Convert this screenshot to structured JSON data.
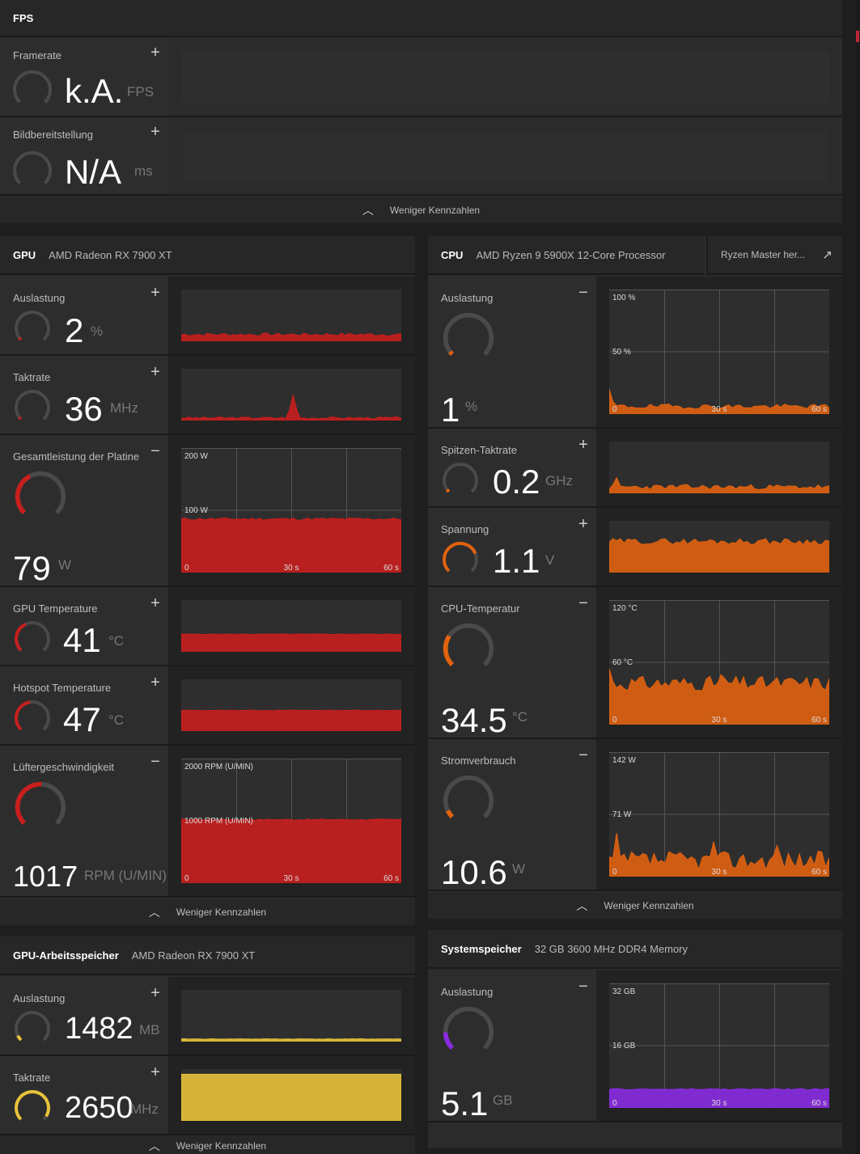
{
  "fps": {
    "title": "FPS",
    "framerate": {
      "label": "Framerate",
      "value": "k.A.",
      "unit": "FPS",
      "toggle": "+"
    },
    "frametime": {
      "label": "Bildbereitstellung",
      "value": "N/A",
      "unit": "ms",
      "toggle": "+"
    },
    "less": "Weniger Kennzahlen"
  },
  "gpu": {
    "title": "GPU",
    "subtitle": "AMD Radeon RX 7900 XT",
    "color": "#c81e1e",
    "less": "Weniger Kennzahlen",
    "metrics": [
      {
        "label": "Auslastung",
        "value": "2",
        "unit": "%",
        "toggle": "+",
        "level": 0.02
      },
      {
        "label": "Taktrate",
        "value": "36",
        "unit": "MHz",
        "toggle": "+",
        "level": 0.01
      },
      {
        "label": "Gesamtleistung der Platine",
        "value": "79",
        "unit": "W",
        "toggle": "−",
        "level": 0.4,
        "chart": {
          "ymax": "200 W",
          "ymid": "100 W",
          "x0": "0",
          "x30": "30 s",
          "x60": "60 s"
        }
      },
      {
        "label": "GPU Temperature",
        "value": "41",
        "unit": "°C",
        "toggle": "+",
        "level": 0.41
      },
      {
        "label": "Hotspot Temperature",
        "value": "47",
        "unit": "°C",
        "toggle": "+",
        "level": 0.47
      },
      {
        "label": "Lüftergeschwindigkeit",
        "value": "1017",
        "unit": "RPM (U/MIN)",
        "toggle": "−",
        "level": 0.51,
        "chart": {
          "ymax": "2000 RPM (U/MIN)",
          "ymid": "1000 RPM (U/MIN)",
          "x0": "0",
          "x30": "30 s",
          "x60": "60 s"
        }
      }
    ]
  },
  "cpu": {
    "title": "CPU",
    "subtitle": "AMD Ryzen 9 5900X 12-Core Processor",
    "link": "Ryzen Master her...",
    "color": "#e0620f",
    "less": "Weniger Kennzahlen",
    "metrics": [
      {
        "label": "Auslastung",
        "value": "1",
        "unit": "%",
        "toggle": "−",
        "level": 0.01,
        "chart": {
          "ymax": "100 %",
          "ymid": "50 %",
          "x0": "0",
          "x30": "30 s",
          "x60": "60 s"
        }
      },
      {
        "label": "Spitzen-Taktrate",
        "value": "0.2",
        "unit": "GHz",
        "toggle": "+",
        "level": 0.04
      },
      {
        "label": "Spannung",
        "value": "1.1",
        "unit": "V",
        "toggle": "+",
        "level": 0.75
      },
      {
        "label": "CPU-Temperatur",
        "value": "34.5",
        "unit": "°C",
        "toggle": "−",
        "level": 0.29,
        "chart": {
          "ymax": "120 °C",
          "ymid": "60 °C",
          "x0": "0",
          "x30": "30 s",
          "x60": "60 s"
        }
      },
      {
        "label": "Stromverbrauch",
        "value": "10.6",
        "unit": "W",
        "toggle": "−",
        "level": 0.07,
        "chart": {
          "ymax": "142 W",
          "ymid": "71 W",
          "x0": "0",
          "x30": "30 s",
          "x60": "60 s"
        }
      }
    ]
  },
  "vram": {
    "title": "GPU-Arbeitsspeicher",
    "subtitle": "AMD Radeon RX 7900 XT",
    "color": "#e8c23a",
    "less": "Weniger Kennzahlen",
    "metrics": [
      {
        "label": "Auslastung",
        "value": "1482",
        "unit": "MB",
        "toggle": "+",
        "level": 0.07
      },
      {
        "label": "Taktrate",
        "value": "2650",
        "unit": "MHz",
        "toggle": "+",
        "level": 0.95
      }
    ]
  },
  "ram": {
    "title": "Systemspeicher",
    "subtitle": "32 GB 3600 MHz DDR4 Memory",
    "color": "#8a2be2",
    "metrics": [
      {
        "label": "Auslastung",
        "value": "5.1",
        "unit": "GB",
        "toggle": "−",
        "level": 0.16,
        "chart": {
          "ymax": "32 GB",
          "ymid": "16 GB",
          "x0": "0",
          "x30": "30 s",
          "x60": "60 s"
        }
      }
    ]
  }
}
